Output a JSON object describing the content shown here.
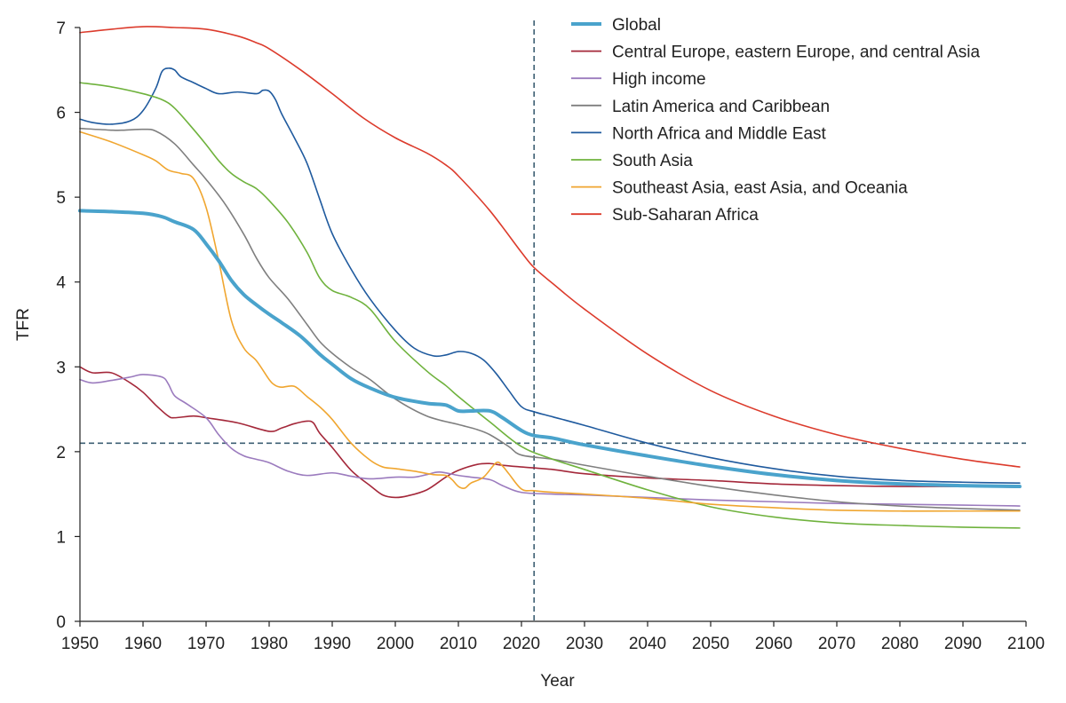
{
  "chart_data": {
    "type": "line",
    "title": "",
    "xlabel": "Year",
    "ylabel": "TFR",
    "xlim": [
      1950,
      2100
    ],
    "ylim": [
      0,
      7
    ],
    "xticks": [
      "1950",
      "1960",
      "1970",
      "1980",
      "1990",
      "2000",
      "2010",
      "2020",
      "2030",
      "2040",
      "2050",
      "2060",
      "2070",
      "2080",
      "2090",
      "2100"
    ],
    "yticks": [
      "0",
      "1",
      "2",
      "3",
      "4",
      "5",
      "6",
      "7"
    ],
    "reference_lines": [
      {
        "name": "replacement-level",
        "axis": "y",
        "value": 2.1
      },
      {
        "name": "forecast-start",
        "axis": "x",
        "value": 2022
      }
    ],
    "legend_position": "top-right",
    "series": [
      {
        "name": "Global",
        "color": "#4aa3cc",
        "emphasis": true,
        "x": [
          1950,
          1955,
          1960,
          1963,
          1965,
          1968,
          1970,
          1972,
          1974,
          1976,
          1978,
          1980,
          1982,
          1985,
          1988,
          1990,
          1993,
          1996,
          2000,
          2005,
          2008,
          2010,
          2012,
          2015,
          2017,
          2020,
          2022,
          2025,
          2030,
          2040,
          2050,
          2060,
          2070,
          2080,
          2090,
          2099
        ],
        "y": [
          4.84,
          4.83,
          4.81,
          4.77,
          4.71,
          4.62,
          4.45,
          4.25,
          4.02,
          3.85,
          3.73,
          3.62,
          3.52,
          3.36,
          3.15,
          3.03,
          2.86,
          2.75,
          2.64,
          2.57,
          2.55,
          2.48,
          2.48,
          2.48,
          2.4,
          2.25,
          2.19,
          2.16,
          2.08,
          1.95,
          1.83,
          1.73,
          1.66,
          1.62,
          1.6,
          1.59
        ]
      },
      {
        "name": "Central Europe, eastern Europe, and central Asia",
        "color": "#a4283a",
        "x": [
          1950,
          1952,
          1955,
          1958,
          1960,
          1962,
          1964,
          1965,
          1968,
          1970,
          1975,
          1980,
          1982,
          1984,
          1986,
          1987,
          1988,
          1990,
          1993,
          1996,
          1998,
          2000,
          2002,
          2005,
          2008,
          2010,
          2013,
          2015,
          2017,
          2020,
          2025,
          2030,
          2040,
          2050,
          2060,
          2070,
          2080,
          2090,
          2099
        ],
        "y": [
          3.0,
          2.93,
          2.93,
          2.81,
          2.7,
          2.55,
          2.42,
          2.4,
          2.42,
          2.4,
          2.34,
          2.24,
          2.28,
          2.33,
          2.36,
          2.34,
          2.22,
          2.05,
          1.78,
          1.6,
          1.49,
          1.46,
          1.48,
          1.55,
          1.7,
          1.78,
          1.85,
          1.86,
          1.84,
          1.82,
          1.79,
          1.74,
          1.69,
          1.66,
          1.62,
          1.6,
          1.59,
          1.59,
          1.58
        ]
      },
      {
        "name": "High income",
        "color": "#9b7bbe",
        "x": [
          1950,
          1952,
          1955,
          1958,
          1960,
          1963,
          1964,
          1965,
          1967,
          1970,
          1972,
          1974,
          1976,
          1978,
          1980,
          1983,
          1986,
          1990,
          1993,
          1996,
          2000,
          2003,
          2005,
          2007,
          2010,
          2012,
          2015,
          2017,
          2020,
          2025,
          2030,
          2040,
          2050,
          2060,
          2070,
          2080,
          2090,
          2099
        ],
        "y": [
          2.85,
          2.81,
          2.84,
          2.88,
          2.91,
          2.88,
          2.8,
          2.66,
          2.56,
          2.4,
          2.2,
          2.04,
          1.95,
          1.91,
          1.87,
          1.77,
          1.72,
          1.75,
          1.71,
          1.68,
          1.7,
          1.7,
          1.73,
          1.76,
          1.72,
          1.7,
          1.67,
          1.6,
          1.52,
          1.5,
          1.49,
          1.46,
          1.43,
          1.41,
          1.39,
          1.38,
          1.37,
          1.36
        ]
      },
      {
        "name": "Latin America and Caribbean",
        "color": "#7f7f7f",
        "x": [
          1950,
          1955,
          1957,
          1960,
          1962,
          1965,
          1968,
          1970,
          1973,
          1976,
          1978,
          1980,
          1983,
          1986,
          1988,
          1990,
          1993,
          1996,
          2000,
          2005,
          2010,
          2013,
          2015,
          2018,
          2020,
          2025,
          2030,
          2040,
          2050,
          2060,
          2070,
          2080,
          2090,
          2099
        ],
        "y": [
          5.81,
          5.79,
          5.79,
          5.8,
          5.78,
          5.63,
          5.38,
          5.21,
          4.92,
          4.56,
          4.28,
          4.05,
          3.8,
          3.5,
          3.3,
          3.16,
          2.99,
          2.85,
          2.62,
          2.42,
          2.32,
          2.26,
          2.2,
          2.06,
          1.96,
          1.91,
          1.84,
          1.71,
          1.59,
          1.49,
          1.41,
          1.36,
          1.33,
          1.31
        ]
      },
      {
        "name": "North Africa and Middle East",
        "color": "#1f5a9e",
        "x": [
          1950,
          1952,
          1955,
          1958,
          1960,
          1962,
          1963,
          1964,
          1965,
          1966,
          1968,
          1970,
          1972,
          1975,
          1978,
          1979,
          1980,
          1981,
          1982,
          1984,
          1986,
          1988,
          1990,
          1993,
          1996,
          2000,
          2003,
          2006,
          2008,
          2010,
          2012,
          2014,
          2016,
          2018,
          2020,
          2022,
          2025,
          2030,
          2040,
          2050,
          2060,
          2070,
          2080,
          2090,
          2099
        ],
        "y": [
          5.92,
          5.88,
          5.86,
          5.9,
          6.02,
          6.28,
          6.48,
          6.52,
          6.5,
          6.42,
          6.35,
          6.28,
          6.22,
          6.24,
          6.22,
          6.26,
          6.25,
          6.15,
          5.98,
          5.7,
          5.4,
          4.98,
          4.57,
          4.15,
          3.8,
          3.43,
          3.22,
          3.13,
          3.14,
          3.18,
          3.16,
          3.08,
          2.92,
          2.72,
          2.53,
          2.47,
          2.41,
          2.31,
          2.1,
          1.93,
          1.8,
          1.71,
          1.66,
          1.64,
          1.63
        ]
      },
      {
        "name": "South Asia",
        "color": "#6fb23d",
        "x": [
          1950,
          1955,
          1960,
          1963,
          1965,
          1968,
          1970,
          1972,
          1974,
          1976,
          1978,
          1980,
          1983,
          1986,
          1988,
          1990,
          1993,
          1996,
          2000,
          2005,
          2008,
          2010,
          2015,
          2020,
          2025,
          2030,
          2040,
          2050,
          2060,
          2070,
          2080,
          2090,
          2099
        ],
        "y": [
          6.35,
          6.3,
          6.22,
          6.15,
          6.05,
          5.8,
          5.62,
          5.43,
          5.28,
          5.18,
          5.1,
          4.96,
          4.7,
          4.35,
          4.05,
          3.9,
          3.82,
          3.68,
          3.3,
          2.95,
          2.78,
          2.65,
          2.35,
          2.06,
          1.91,
          1.79,
          1.55,
          1.35,
          1.23,
          1.16,
          1.13,
          1.11,
          1.1
        ]
      },
      {
        "name": "Southeast Asia, east Asia, and Oceania",
        "color": "#f0a630",
        "x": [
          1950,
          1955,
          1960,
          1962,
          1964,
          1966,
          1968,
          1970,
          1972,
          1974,
          1976,
          1978,
          1980,
          1981,
          1982,
          1984,
          1986,
          1988,
          1990,
          1993,
          1996,
          1998,
          2000,
          2003,
          2006,
          2008,
          2009,
          2010,
          2011,
          2012,
          2014,
          2016,
          2017,
          2018,
          2020,
          2022,
          2025,
          2030,
          2040,
          2050,
          2060,
          2070,
          2080,
          2090,
          2099
        ],
        "y": [
          5.77,
          5.65,
          5.5,
          5.43,
          5.32,
          5.28,
          5.22,
          4.88,
          4.25,
          3.55,
          3.22,
          3.07,
          2.85,
          2.78,
          2.76,
          2.77,
          2.65,
          2.53,
          2.38,
          2.1,
          1.9,
          1.82,
          1.8,
          1.77,
          1.73,
          1.72,
          1.67,
          1.59,
          1.57,
          1.63,
          1.7,
          1.87,
          1.83,
          1.74,
          1.56,
          1.54,
          1.52,
          1.5,
          1.45,
          1.38,
          1.34,
          1.31,
          1.3,
          1.3,
          1.3
        ]
      },
      {
        "name": "Sub-Saharan Africa",
        "color": "#dc3b2c",
        "x": [
          1950,
          1955,
          1960,
          1965,
          1970,
          1975,
          1978,
          1980,
          1985,
          1990,
          1995,
          2000,
          2005,
          2008,
          2010,
          2015,
          2020,
          2022,
          2025,
          2030,
          2040,
          2050,
          2060,
          2070,
          2080,
          2090,
          2099
        ],
        "y": [
          6.94,
          6.98,
          7.01,
          7.0,
          6.98,
          6.9,
          6.82,
          6.75,
          6.5,
          6.22,
          5.93,
          5.7,
          5.52,
          5.38,
          5.25,
          4.84,
          4.35,
          4.17,
          3.98,
          3.68,
          3.15,
          2.72,
          2.42,
          2.2,
          2.04,
          1.91,
          1.82
        ]
      }
    ]
  }
}
